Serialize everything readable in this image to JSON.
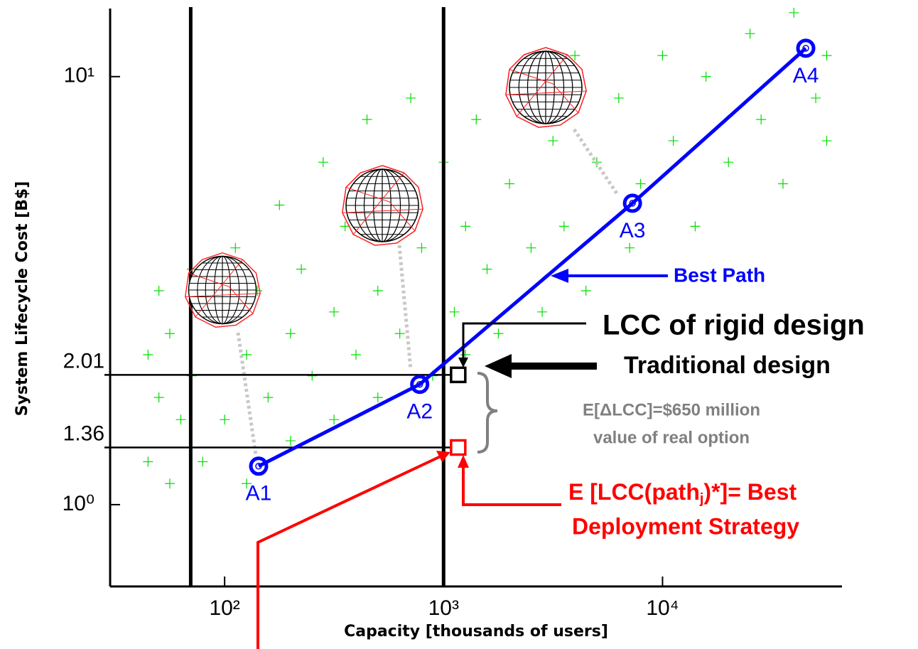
{
  "chart_data": {
    "type": "scatter",
    "xlabel": "Capacity [thousands of users]",
    "ylabel": "System Lifecycle Cost [B$]",
    "log_x": true,
    "log_y": true,
    "xlim": [
      30,
      66000
    ],
    "ylim": [
      0.644,
      15.1
    ],
    "xticks": [
      {
        "value": 100,
        "label": "10²"
      },
      {
        "value": 1000,
        "label": "10³"
      },
      {
        "value": 10000,
        "label": "10⁴"
      }
    ],
    "yticks": [
      {
        "value": 1,
        "label": "10⁰"
      },
      {
        "value": 10,
        "label": "10¹"
      }
    ],
    "scatter": {
      "color": "#00dd00",
      "x": [
        44.7,
        44.7,
        50.1,
        50.1,
        56.2,
        56.2,
        63.1,
        70.8,
        70.8,
        79.4,
        89.1,
        100,
        112,
        126,
        126,
        141,
        158,
        178,
        200,
        200,
        224,
        251,
        282,
        316,
        316,
        355,
        398,
        447,
        501,
        501,
        562,
        631,
        708,
        794,
        891,
        1000,
        1120,
        1260,
        1260,
        1410,
        1580,
        1780,
        2000,
        2240,
        2510,
        2820,
        3160,
        3550,
        3980,
        4470,
        5010,
        6310,
        7080,
        7940,
        10000,
        11200,
        14100,
        15800,
        20000,
        25100,
        28200,
        35500,
        39800,
        50100,
        56200,
        56200
      ],
      "y": [
        2.24,
        1.26,
        3.16,
        1.78,
        1.12,
        2.51,
        1.58,
        3.55,
        2.0,
        1.26,
        2.82,
        1.58,
        3.98,
        2.24,
        1.12,
        3.16,
        1.78,
        5.01,
        2.51,
        1.41,
        3.55,
        2.0,
        6.31,
        2.82,
        1.58,
        4.47,
        2.24,
        7.94,
        3.16,
        1.78,
        5.62,
        2.51,
        8.91,
        3.98,
        2.0,
        6.31,
        2.82,
        4.47,
        2.24,
        7.94,
        3.55,
        2.51,
        5.62,
        10,
        3.98,
        2.82,
        7.08,
        4.47,
        11.2,
        3.16,
        6.31,
        8.91,
        3.98,
        5.62,
        11.2,
        7.08,
        4.47,
        10,
        6.31,
        12.6,
        7.94,
        5.62,
        14.1,
        8.91,
        11.2,
        7.08
      ]
    },
    "path": {
      "color": "#0000ff",
      "labels": [
        "A1",
        "A2",
        "A3",
        "A4"
      ],
      "x": [
        143,
        778,
        7290,
        45100
      ],
      "y": [
        1.23,
        1.91,
        5.06,
        11.65
      ]
    },
    "vlines": [
      70,
      1000
    ],
    "squares": {
      "x": [
        1166,
        1166
      ],
      "y": [
        2.01,
        1.36
      ],
      "colors": [
        "#000000",
        "#ff0000"
      ]
    },
    "annotations": {
      "best_path": "Best Path",
      "rigid": "LCC of rigid design",
      "traditional": "Traditional design",
      "delta": "E[ΔLCC]=$650 million",
      "option": "value of real option",
      "best_strategy": [
        "E [LCC(path",
        "j",
        ")*]=  Best"
      ],
      "deployment": "Deployment Strategy"
    }
  }
}
